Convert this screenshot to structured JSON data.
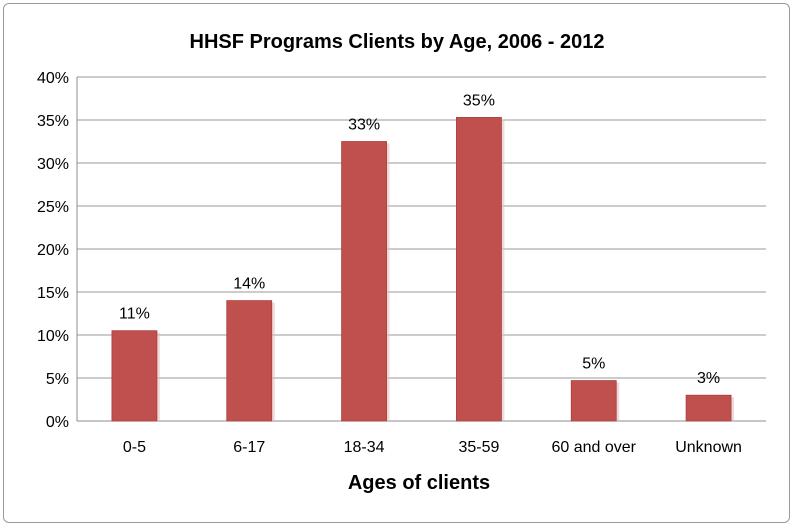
{
  "chart_data": {
    "type": "bar",
    "title": "HHSF Programs Clients by Age, 2006 - 2012",
    "xlabel": "Ages of clients",
    "ylabel": "",
    "categories": [
      "0-5",
      "6-17",
      "18-34",
      "35-59",
      "60 and over",
      "Unknown"
    ],
    "values": [
      10.5,
      14,
      32.5,
      35.3,
      4.7,
      3
    ],
    "data_labels": [
      "11%",
      "14%",
      "33%",
      "35%",
      "5%",
      "3%"
    ],
    "ylim": [
      0,
      40
    ],
    "y_ticks": [
      "0%",
      "5%",
      "10%",
      "15%",
      "20%",
      "25%",
      "30%",
      "35%",
      "40%"
    ],
    "grid": true,
    "legend": "none",
    "bar_color": "#c0504d"
  }
}
